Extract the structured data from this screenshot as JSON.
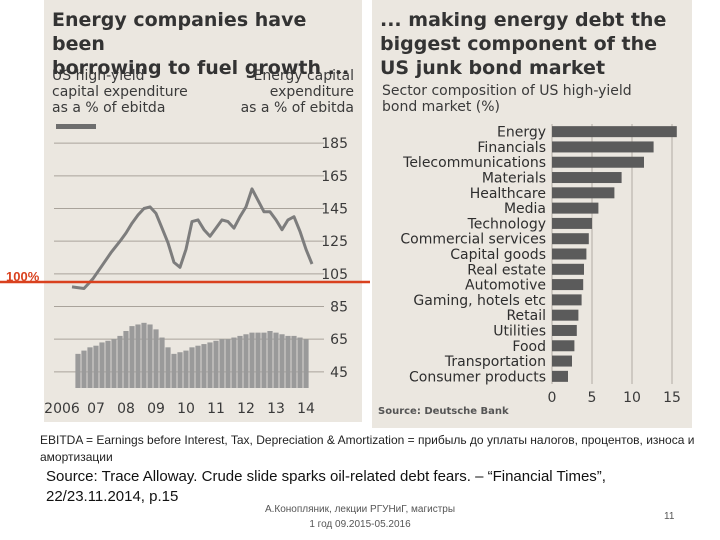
{
  "left_panel": {
    "headline": "Energy companies have been\nborrowing to fuel growth ...",
    "left_axis_label": "US high-yield\ncapital expenditure\nas a % of ebitda",
    "right_axis_label": "Energy capital\nexpenditure\nas a % of ebitda"
  },
  "right_panel": {
    "headline": "... making energy debt the\nbiggest component of the\nUS junk bond market",
    "subtitle": "Sector composition of US high-yield\nbond market (%)",
    "source": "Source: Deutsche Bank"
  },
  "reference_line": {
    "label": "100%",
    "color": "#d9411e",
    "value": 100
  },
  "note": "EBITDA = Earnings before Interest, Tax, Depreciation & Amortization = прибыль до уплаты налогов, процентов, износа и амортизации",
  "source_text": "Source: Trace Alloway. Crude slide sparks oil-related debt fears. – “Financial Times”, 22/23.11.2014, p.15",
  "footer": "А.Конопляник, лекции РГУНиГ, магистры\n1 год 09.2015-05.2016",
  "page_number": "11",
  "chart_data": [
    {
      "type": "line",
      "x_ticks": [
        "2006",
        "07",
        "08",
        "09",
        "10",
        "11",
        "12",
        "13",
        "14"
      ],
      "y_ticks": [
        185,
        165,
        145,
        125,
        105,
        85,
        65,
        45
      ],
      "ylim": [
        40,
        190
      ],
      "xlim": [
        2006,
        2015
      ],
      "grid": true,
      "series": [
        {
          "kind": "line",
          "x": [
            2006.6,
            2007.0,
            2007.3,
            2007.6,
            2007.9,
            2008.2,
            2008.4,
            2008.6,
            2008.8,
            2009.0,
            2009.2,
            2009.4,
            2009.6,
            2009.8,
            2010.0,
            2010.2,
            2010.4,
            2010.6,
            2010.8,
            2011.0,
            2011.2,
            2011.4,
            2011.6,
            2011.8,
            2012.0,
            2012.2,
            2012.4,
            2012.6,
            2012.8,
            2013.0,
            2013.2,
            2013.4,
            2013.6,
            2013.8,
            2014.0,
            2014.2,
            2014.4,
            2014.6
          ],
          "y": [
            97,
            96,
            102,
            110,
            118,
            125,
            130,
            136,
            141,
            145,
            146,
            142,
            133,
            124,
            112,
            109,
            120,
            137,
            138,
            132,
            128,
            133,
            138,
            137,
            133,
            140,
            146,
            157,
            150,
            143,
            143,
            138,
            132,
            138,
            140,
            131,
            120,
            111
          ]
        },
        {
          "kind": "bar",
          "x": [
            2006.8,
            2007.0,
            2007.2,
            2007.4,
            2007.6,
            2007.8,
            2008.0,
            2008.2,
            2008.4,
            2008.6,
            2008.8,
            2009.0,
            2009.2,
            2009.4,
            2009.6,
            2009.8,
            2010.0,
            2010.2,
            2010.4,
            2010.6,
            2010.8,
            2011.0,
            2011.2,
            2011.4,
            2011.6,
            2011.8,
            2012.0,
            2012.2,
            2012.4,
            2012.6,
            2012.8,
            2013.0,
            2013.2,
            2013.4,
            2013.6,
            2013.8,
            2014.0,
            2014.2,
            2014.4
          ],
          "y": [
            56,
            58,
            60,
            61,
            63,
            64,
            65,
            67,
            70,
            73,
            74,
            75,
            74,
            71,
            66,
            60,
            56,
            57,
            58,
            60,
            61,
            62,
            63,
            64,
            65,
            65,
            66,
            67,
            68,
            69,
            69,
            69,
            70,
            69,
            68,
            67,
            67,
            66,
            65
          ]
        }
      ]
    },
    {
      "type": "bar",
      "orientation": "horizontal",
      "categories": [
        "Energy",
        "Financials",
        "Telecommunications",
        "Materials",
        "Healthcare",
        "Media",
        "Technology",
        "Commercial services",
        "Capital goods",
        "Real estate",
        "Automotive",
        "Gaming, hotels etc",
        "Retail",
        "Utilities",
        "Food",
        "Transportation",
        "Consumer products"
      ],
      "values": [
        15.6,
        12.7,
        11.5,
        8.7,
        7.8,
        5.8,
        5.0,
        4.6,
        4.3,
        4.0,
        3.9,
        3.7,
        3.3,
        3.1,
        2.8,
        2.5,
        2.0
      ],
      "x_ticks": [
        0,
        5,
        10,
        15
      ],
      "xlim": [
        0,
        16
      ],
      "grid": true
    }
  ]
}
